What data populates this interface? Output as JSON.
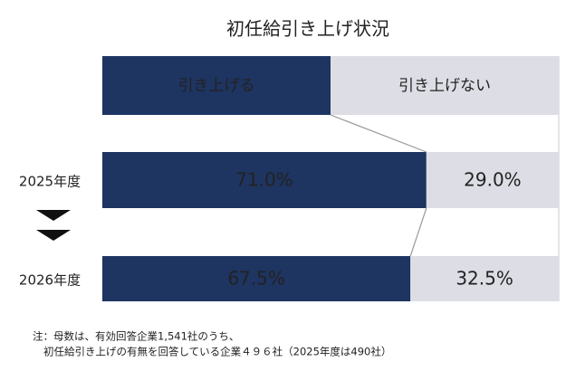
{
  "chart_data": {
    "type": "stacked-bar-horizontal",
    "title": "初任給引き上げ状況",
    "categories": [
      "2025年度",
      "2026年度"
    ],
    "series": [
      {
        "name": "引き上げる",
        "color": "#1e3461",
        "values": [
          71.0,
          67.5
        ],
        "value_labels": [
          "71.0%",
          "67.5%"
        ]
      },
      {
        "name": "引き上げない",
        "color": "#dddde5",
        "values": [
          29.0,
          32.5
        ],
        "value_labels": [
          "29.0%",
          "32.5%"
        ]
      }
    ],
    "xlim": [
      0,
      100
    ],
    "notes": [
      "注：母数は、有効回答企業1,541社のうち、",
      "初任給引き上げの有無を回答している企業４９６社（2025年度は490社）"
    ]
  }
}
